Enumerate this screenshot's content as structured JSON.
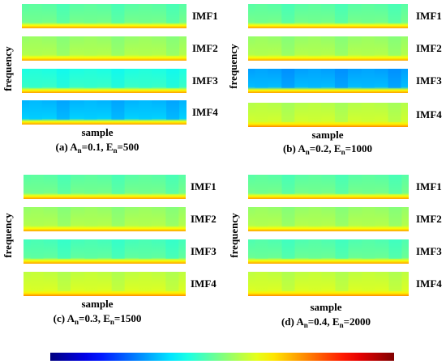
{
  "figure": {
    "ylabel": "frequency",
    "xlabel": "sample",
    "imf_labels": [
      "IMF1",
      "IMF2",
      "IMF3",
      "IMF4"
    ]
  },
  "chart_data": [
    {
      "type": "heatmap",
      "caption_letter": "(a) A",
      "caption_sub1": "n",
      "caption_mid": "=0.1, E",
      "caption_sub2": "n",
      "caption_end": "=500",
      "An": 0.1,
      "En": 500,
      "imfs": [
        {
          "name": "IMF1",
          "level": 0.46,
          "band": 0.62
        },
        {
          "name": "IMF2",
          "level": 0.52,
          "band": 0.62
        },
        {
          "name": "IMF3",
          "level": 0.4,
          "band": 0.62
        },
        {
          "name": "IMF4",
          "level": 0.3,
          "band": 0.62
        }
      ]
    },
    {
      "type": "heatmap",
      "caption_letter": "(b) A",
      "caption_sub1": "n",
      "caption_mid": "=0.2, E",
      "caption_sub2": "n",
      "caption_end": "=1000",
      "An": 0.2,
      "En": 1000,
      "imfs": [
        {
          "name": "IMF1",
          "level": 0.46,
          "band": 0.62
        },
        {
          "name": "IMF2",
          "level": 0.52,
          "band": 0.62
        },
        {
          "name": "IMF3",
          "level": 0.28,
          "band": 0.62
        },
        {
          "name": "IMF4",
          "level": 0.55,
          "band": 0.64
        }
      ]
    },
    {
      "type": "heatmap",
      "caption_letter": "(c) A",
      "caption_sub1": "n",
      "caption_mid": "=0.3, E",
      "caption_sub2": "n",
      "caption_end": "=1500",
      "An": 0.3,
      "En": 1500,
      "imfs": [
        {
          "name": "IMF1",
          "level": 0.46,
          "band": 0.62
        },
        {
          "name": "IMF2",
          "level": 0.52,
          "band": 0.62
        },
        {
          "name": "IMF3",
          "level": 0.44,
          "band": 0.62
        },
        {
          "name": "IMF4",
          "level": 0.56,
          "band": 0.64
        }
      ]
    },
    {
      "type": "heatmap",
      "caption_letter": "(d) A",
      "caption_sub1": "n",
      "caption_mid": "=0.4, E",
      "caption_sub2": "n",
      "caption_end": "=2000",
      "An": 0.4,
      "En": 2000,
      "imfs": [
        {
          "name": "IMF1",
          "level": 0.46,
          "band": 0.62
        },
        {
          "name": "IMF2",
          "level": 0.52,
          "band": 0.62
        },
        {
          "name": "IMF3",
          "level": 0.45,
          "band": 0.62
        },
        {
          "name": "IMF4",
          "level": 0.56,
          "band": 0.64
        }
      ]
    }
  ],
  "colorbar": {
    "colormap": "jet"
  }
}
